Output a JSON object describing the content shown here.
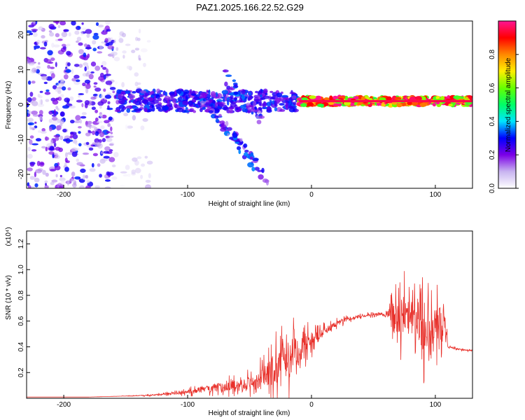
{
  "title": "PAZ1.2025.166.22.52.G29",
  "chart_data": [
    {
      "type": "heatmap",
      "xlabel": "Height of straight line (km)",
      "ylabel": "Frequency (Hz)",
      "xlim": [
        -230,
        130
      ],
      "ylim": [
        -24,
        24
      ],
      "xticks": [
        -200,
        -100,
        0,
        100
      ],
      "yticks": [
        -20,
        -10,
        0,
        10,
        20
      ],
      "colorbar": {
        "label": "Normalized spectral amplitude",
        "ticks": [
          "0.0",
          "0.2",
          "0.4",
          "0.6",
          "0.8"
        ],
        "range": [
          0,
          1
        ],
        "colors": [
          "#ffffff",
          "#c8b4f0",
          "#7b00e6",
          "#0000ff",
          "#00e5ff",
          "#00ff66",
          "#66ff00",
          "#ffee00",
          "#ff8800",
          "#ff0000",
          "#ff1493"
        ]
      },
      "features": [
        {
          "x_range": [
            -230,
            -160
          ],
          "y_range": [
            -24,
            24
          ],
          "amplitude": 0.15
        },
        {
          "x_range": [
            -160,
            -130
          ],
          "y_range": [
            -24,
            24
          ],
          "amplitude": 0.05
        },
        {
          "x_range": [
            -160,
            -10
          ],
          "y_center": 1,
          "y_halfwidth": 3,
          "amplitude": 0.3
        },
        {
          "x_range": [
            -90,
            -35
          ],
          "y_from": 3,
          "y_to": -22,
          "amplitude": 0.2
        },
        {
          "x_range": [
            -70,
            -40
          ],
          "y_from": 8,
          "y_to": -4,
          "amplitude": 0.2
        },
        {
          "x_range": [
            -10,
            130
          ],
          "y_center": 1,
          "y_halfwidth": 1.2,
          "amplitude": 0.95
        }
      ]
    },
    {
      "type": "line",
      "xlabel": "Height of straight line (km)",
      "ylabel": "SNR (10 * v/v)",
      "yscale_label": "(x10⁴)",
      "xlim": [
        -230,
        130
      ],
      "ylim": [
        0,
        1.3
      ],
      "xticks": [
        -200,
        -100,
        0,
        100
      ],
      "yticks": [
        "0.2",
        "0.4",
        "0.6",
        "0.8",
        "1.0",
        "1.2"
      ],
      "color": "#e8302a",
      "series": [
        {
          "x": [
            -230,
            -200,
            -180,
            -160,
            -140,
            -120,
            -100,
            -80,
            -60,
            -50,
            -40,
            -30,
            -20,
            -10,
            0,
            10,
            20,
            30,
            40,
            50,
            60,
            65,
            70,
            75,
            80,
            85,
            88,
            90,
            95,
            100,
            105,
            108,
            110,
            120,
            130
          ],
          "values": [
            0.01,
            0.01,
            0.01,
            0.015,
            0.02,
            0.03,
            0.05,
            0.08,
            0.1,
            0.12,
            0.15,
            0.22,
            0.3,
            0.38,
            0.44,
            0.52,
            0.58,
            0.62,
            0.64,
            0.65,
            0.65,
            0.66,
            0.66,
            0.64,
            0.63,
            0.62,
            0.6,
            0.55,
            0.6,
            0.55,
            0.6,
            0.62,
            0.4,
            0.38,
            0.37
          ],
          "noise": [
            0,
            0,
            0,
            0,
            0.005,
            0.01,
            0.03,
            0.06,
            0.08,
            0.1,
            0.15,
            0.25,
            0.3,
            0.2,
            0.12,
            0.06,
            0.04,
            0.03,
            0.02,
            0.02,
            0.02,
            0.15,
            0.35,
            0.3,
            0.25,
            0.3,
            0.5,
            0.4,
            0.35,
            0.3,
            0.3,
            0.2,
            0.01,
            0.01,
            0.01
          ]
        }
      ]
    }
  ]
}
